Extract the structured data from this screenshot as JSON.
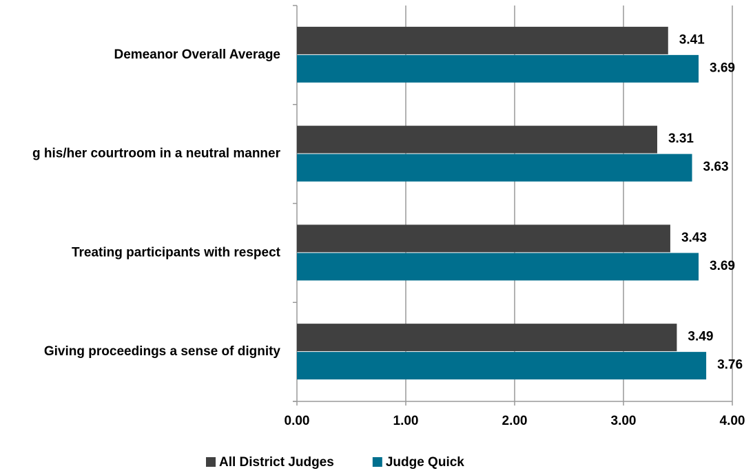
{
  "chart_data": {
    "type": "hbar",
    "categories": [
      "Demeanor Overall Average",
      "g his/her courtroom in a neutral manner",
      "Treating participants with respect",
      "Giving proceedings a sense of dignity"
    ],
    "series": [
      {
        "name": "All District Judges",
        "color": "#404040",
        "values": [
          3.41,
          3.31,
          3.43,
          3.49
        ]
      },
      {
        "name": "Judge Quick",
        "color": "#006f8e",
        "values": [
          3.69,
          3.63,
          3.69,
          3.76
        ]
      }
    ],
    "xlim": [
      0,
      4
    ],
    "xticks": [
      {
        "value": 0,
        "label": "0.00"
      },
      {
        "value": 1,
        "label": "1.00"
      },
      {
        "value": 2,
        "label": "2.00"
      },
      {
        "value": 3,
        "label": "3.00"
      },
      {
        "value": 4,
        "label": "4.00"
      }
    ],
    "grid": true,
    "legend": "bottom"
  }
}
